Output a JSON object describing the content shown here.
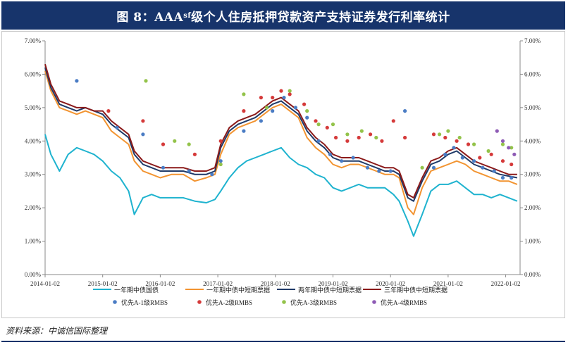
{
  "title": {
    "prefix": "图 8：AAA",
    "sub": "sf",
    "suffix": " 级个人住房抵押贷款资产支持证券发行利率统计"
  },
  "source": "资料来源：中诚信国际整理",
  "colors": {
    "title_bg": "#17346b",
    "line_1y_govt": "#1fb3cf",
    "line_1y_mtn": "#f29431",
    "line_2y_mtn": "#1f3a68",
    "line_3y_mtn": "#8b1a1a",
    "dot_a1": "#4a7cc4",
    "dot_a2": "#d53a3a",
    "dot_a3": "#93c34a",
    "dot_a4": "#8e5bb5"
  },
  "chart_data": {
    "type": "line",
    "x_ticks": [
      "2014-01-02",
      "2015-01-02",
      "2016-01-02",
      "2017-01-02",
      "2018-01-02",
      "2019-01-02",
      "2020-01-02",
      "2021-01-02",
      "2022-01-02"
    ],
    "y_ticks": [
      "0.00%",
      "1.00%",
      "2.00%",
      "3.00%",
      "4.00%",
      "5.00%",
      "6.00%",
      "7.00%"
    ],
    "ylim": [
      0,
      7
    ],
    "xlim": [
      2014.0,
      2022.25
    ],
    "grid": false,
    "legend_position": "bottom",
    "series": [
      {
        "name": "一年期中债国债",
        "kind": "line",
        "color_key": "line_1y_govt",
        "x": [
          2014.0,
          2014.1,
          2014.25,
          2014.4,
          2014.55,
          2014.7,
          2014.85,
          2015.0,
          2015.15,
          2015.3,
          2015.45,
          2015.55,
          2015.7,
          2015.85,
          2016.0,
          2016.2,
          2016.4,
          2016.6,
          2016.8,
          2016.95,
          2017.05,
          2017.2,
          2017.35,
          2017.5,
          2017.65,
          2017.8,
          2017.95,
          2018.1,
          2018.25,
          2018.4,
          2018.55,
          2018.7,
          2018.85,
          2019.0,
          2019.15,
          2019.3,
          2019.45,
          2019.6,
          2019.75,
          2019.9,
          2020.05,
          2020.15,
          2020.3,
          2020.4,
          2020.55,
          2020.7,
          2020.85,
          2021.0,
          2021.15,
          2021.3,
          2021.45,
          2021.6,
          2021.75,
          2021.9,
          2022.05,
          2022.2
        ],
        "y": [
          4.2,
          3.6,
          3.1,
          3.6,
          3.8,
          3.7,
          3.6,
          3.4,
          3.1,
          2.9,
          2.5,
          1.8,
          2.3,
          2.4,
          2.3,
          2.3,
          2.3,
          2.2,
          2.15,
          2.25,
          2.5,
          2.9,
          3.2,
          3.4,
          3.5,
          3.6,
          3.7,
          3.8,
          3.5,
          3.3,
          3.2,
          3.0,
          2.9,
          2.6,
          2.5,
          2.6,
          2.7,
          2.6,
          2.6,
          2.6,
          2.4,
          2.2,
          1.6,
          1.15,
          1.8,
          2.5,
          2.7,
          2.7,
          2.8,
          2.6,
          2.4,
          2.4,
          2.3,
          2.4,
          2.3,
          2.2
        ]
      },
      {
        "name": "一年期中债中短期票据",
        "kind": "line",
        "color_key": "line_1y_mtn",
        "x": [
          2014.0,
          2014.1,
          2014.25,
          2014.4,
          2014.55,
          2014.7,
          2014.85,
          2015.0,
          2015.15,
          2015.3,
          2015.45,
          2015.55,
          2015.7,
          2015.85,
          2016.0,
          2016.2,
          2016.4,
          2016.6,
          2016.8,
          2016.95,
          2017.05,
          2017.2,
          2017.35,
          2017.5,
          2017.65,
          2017.8,
          2017.95,
          2018.1,
          2018.25,
          2018.4,
          2018.55,
          2018.7,
          2018.85,
          2019.0,
          2019.15,
          2019.3,
          2019.45,
          2019.6,
          2019.75,
          2019.9,
          2020.05,
          2020.15,
          2020.3,
          2020.4,
          2020.55,
          2020.7,
          2020.85,
          2021.0,
          2021.15,
          2021.3,
          2021.45,
          2021.6,
          2021.75,
          2021.9,
          2022.05,
          2022.2
        ],
        "y": [
          6.1,
          5.5,
          5.0,
          4.9,
          4.8,
          4.9,
          4.8,
          4.7,
          4.3,
          4.1,
          3.9,
          3.4,
          3.1,
          3.0,
          2.9,
          3.0,
          3.0,
          2.8,
          2.9,
          3.0,
          3.6,
          4.2,
          4.4,
          4.5,
          4.6,
          4.8,
          5.0,
          5.1,
          4.9,
          4.7,
          4.1,
          3.8,
          3.6,
          3.3,
          3.2,
          3.3,
          3.3,
          3.2,
          3.1,
          3.0,
          3.0,
          2.9,
          2.0,
          1.8,
          2.6,
          3.1,
          3.2,
          3.3,
          3.4,
          3.3,
          3.1,
          3.0,
          2.9,
          2.8,
          2.8,
          2.7
        ]
      },
      {
        "name": "两年期中债中短期票据",
        "kind": "line",
        "color_key": "line_2y_mtn",
        "x": [
          2014.0,
          2014.1,
          2014.25,
          2014.4,
          2014.55,
          2014.7,
          2014.85,
          2015.0,
          2015.15,
          2015.3,
          2015.45,
          2015.55,
          2015.7,
          2015.85,
          2016.0,
          2016.2,
          2016.4,
          2016.6,
          2016.8,
          2016.95,
          2017.05,
          2017.2,
          2017.35,
          2017.5,
          2017.65,
          2017.8,
          2017.95,
          2018.1,
          2018.25,
          2018.4,
          2018.55,
          2018.7,
          2018.85,
          2019.0,
          2019.15,
          2019.3,
          2019.45,
          2019.6,
          2019.75,
          2019.9,
          2020.05,
          2020.15,
          2020.3,
          2020.4,
          2020.55,
          2020.7,
          2020.85,
          2021.0,
          2021.15,
          2021.3,
          2021.45,
          2021.6,
          2021.75,
          2021.9,
          2022.05,
          2022.2
        ],
        "y": [
          6.2,
          5.6,
          5.1,
          5.0,
          4.9,
          5.0,
          4.9,
          4.8,
          4.5,
          4.3,
          4.1,
          3.6,
          3.3,
          3.2,
          3.1,
          3.1,
          3.1,
          3.0,
          3.0,
          3.1,
          3.8,
          4.3,
          4.5,
          4.6,
          4.7,
          4.9,
          5.1,
          5.2,
          5.0,
          4.8,
          4.3,
          4.0,
          3.8,
          3.5,
          3.4,
          3.4,
          3.4,
          3.3,
          3.2,
          3.1,
          3.1,
          3.0,
          2.3,
          2.2,
          2.8,
          3.3,
          3.4,
          3.6,
          3.7,
          3.5,
          3.3,
          3.2,
          3.1,
          3.0,
          2.95,
          2.9
        ]
      },
      {
        "name": "三年期中债中短期票据",
        "kind": "line",
        "color_key": "line_3y_mtn",
        "x": [
          2014.0,
          2014.1,
          2014.25,
          2014.4,
          2014.55,
          2014.7,
          2014.85,
          2015.0,
          2015.15,
          2015.3,
          2015.45,
          2015.55,
          2015.7,
          2015.85,
          2016.0,
          2016.2,
          2016.4,
          2016.6,
          2016.8,
          2016.95,
          2017.05,
          2017.2,
          2017.35,
          2017.5,
          2017.65,
          2017.8,
          2017.95,
          2018.1,
          2018.25,
          2018.4,
          2018.55,
          2018.7,
          2018.85,
          2019.0,
          2019.15,
          2019.3,
          2019.45,
          2019.6,
          2019.75,
          2019.9,
          2020.05,
          2020.15,
          2020.3,
          2020.4,
          2020.55,
          2020.7,
          2020.85,
          2021.0,
          2021.15,
          2021.3,
          2021.45,
          2021.6,
          2021.75,
          2021.9,
          2022.05,
          2022.2
        ],
        "y": [
          6.3,
          5.7,
          5.2,
          5.1,
          5.0,
          5.0,
          4.9,
          4.9,
          4.6,
          4.4,
          4.2,
          3.7,
          3.4,
          3.3,
          3.2,
          3.2,
          3.2,
          3.1,
          3.1,
          3.2,
          3.9,
          4.4,
          4.6,
          4.7,
          4.8,
          5.0,
          5.2,
          5.3,
          5.1,
          4.9,
          4.4,
          4.1,
          3.9,
          3.6,
          3.5,
          3.5,
          3.5,
          3.4,
          3.3,
          3.2,
          3.2,
          3.1,
          2.4,
          2.3,
          2.9,
          3.4,
          3.5,
          3.7,
          3.8,
          3.6,
          3.4,
          3.3,
          3.2,
          3.1,
          3.0,
          3.0
        ]
      },
      {
        "name": "优先A-1级RMBS",
        "kind": "scatter",
        "color_key": "dot_a1",
        "x": [
          2014.55,
          2015.25,
          2015.7,
          2016.05,
          2016.5,
          2016.9,
          2017.05,
          2017.45,
          2017.75,
          2017.95,
          2018.15,
          2018.35,
          2018.55,
          2018.75,
          2018.95,
          2019.15,
          2019.35,
          2019.6,
          2019.8,
          2020.0,
          2020.25,
          2020.75,
          2020.95,
          2021.1,
          2021.25,
          2021.45,
          2021.6,
          2021.8,
          2021.95,
          2022.1
        ],
        "y": [
          5.8,
          4.4,
          4.2,
          3.2,
          3.1,
          3.0,
          3.4,
          4.3,
          4.6,
          4.9,
          5.3,
          5.0,
          4.7,
          4.0,
          3.6,
          3.4,
          3.5,
          3.2,
          3.1,
          3.1,
          4.9,
          3.2,
          3.6,
          3.8,
          3.5,
          3.4,
          3.2,
          3.1,
          2.9,
          2.9
        ]
      },
      {
        "name": "优先A-2级RMBS",
        "kind": "scatter",
        "color_key": "dot_a2",
        "x": [
          2015.1,
          2015.7,
          2016.05,
          2016.6,
          2017.05,
          2017.45,
          2017.75,
          2017.95,
          2018.1,
          2018.25,
          2018.5,
          2018.7,
          2018.9,
          2019.05,
          2019.25,
          2019.45,
          2019.65,
          2019.85,
          2020.05,
          2020.25,
          2020.75,
          2020.95,
          2021.15,
          2021.35,
          2021.55,
          2021.75,
          2021.95,
          2022.1
        ],
        "y": [
          4.9,
          4.6,
          3.9,
          3.6,
          4.0,
          4.9,
          5.3,
          5.3,
          5.5,
          5.4,
          5.1,
          4.6,
          4.4,
          4.1,
          4.0,
          4.1,
          4.2,
          4.0,
          4.6,
          4.1,
          4.2,
          4.1,
          4.0,
          3.9,
          3.5,
          3.6,
          3.4,
          3.3
        ]
      },
      {
        "name": "优先A-3级RMBS",
        "kind": "scatter",
        "color_key": "dot_a3",
        "x": [
          2015.75,
          2016.25,
          2016.5,
          2017.05,
          2017.45,
          2017.85,
          2018.25,
          2018.55,
          2018.75,
          2019.0,
          2019.25,
          2019.5,
          2019.75,
          2020.55,
          2020.85,
          2021.0,
          2021.2,
          2021.45,
          2021.7,
          2021.95,
          2022.1
        ],
        "y": [
          5.8,
          4.0,
          3.9,
          3.3,
          5.4,
          5.0,
          5.5,
          4.9,
          4.5,
          4.5,
          4.2,
          4.3,
          4.1,
          3.2,
          4.2,
          4.3,
          4.1,
          3.9,
          3.7,
          3.9,
          3.8
        ]
      },
      {
        "name": "优先A-4级RMBS",
        "kind": "scatter",
        "color_key": "dot_a4",
        "x": [
          2021.85,
          2021.95,
          2022.05,
          2022.15
        ],
        "y": [
          4.3,
          4.0,
          3.8,
          3.6
        ]
      }
    ]
  }
}
